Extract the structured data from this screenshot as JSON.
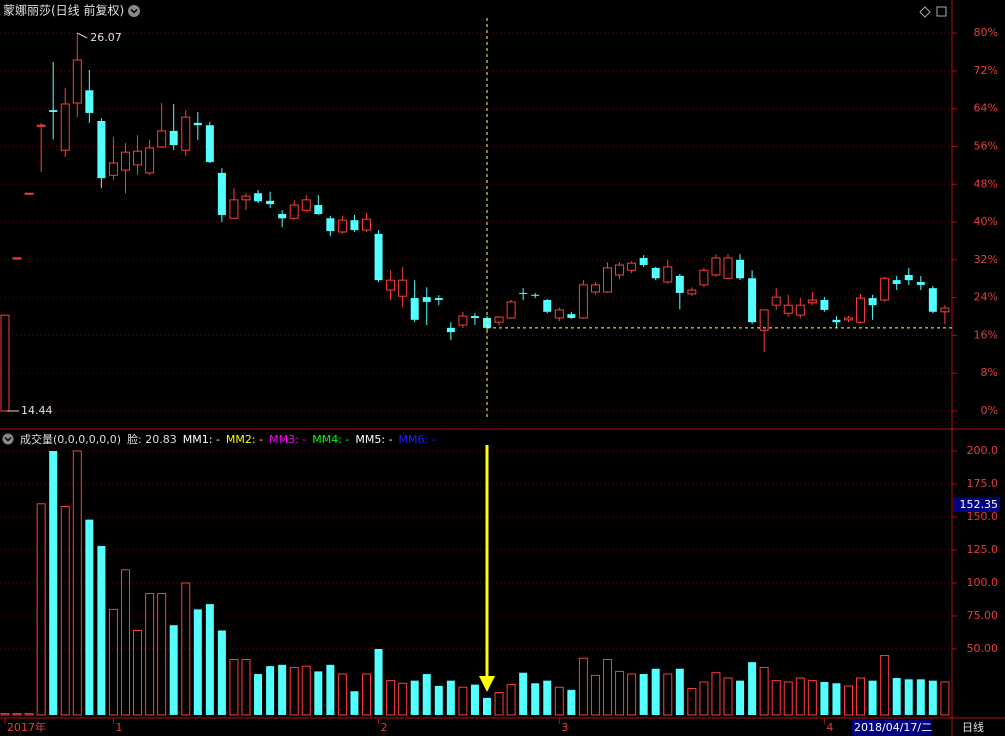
{
  "chart_data": [
    {
      "type": "candlestick",
      "title": "蒙娜丽莎(日线 前复权)",
      "categories": [
        "2017年",
        null,
        null,
        null,
        null,
        null,
        null,
        null,
        null,
        "1",
        null,
        null,
        null,
        null,
        null,
        null,
        null,
        null,
        null,
        null,
        null,
        null,
        null,
        null,
        null,
        null,
        null,
        null,
        null,
        null,
        null,
        "2",
        null,
        null,
        null,
        null,
        null,
        null,
        null,
        null,
        null,
        null,
        null,
        null,
        null,
        null,
        "3",
        null,
        null,
        null,
        null,
        null,
        null,
        null,
        null,
        null,
        null,
        null,
        null,
        null,
        null,
        null,
        null,
        null,
        null,
        null,
        null,
        null,
        "4",
        null,
        null,
        null,
        null,
        null,
        null,
        null,
        null,
        null,
        null
      ],
      "open": [
        0,
        32.4,
        46.1,
        60.3,
        63.7,
        55.2,
        65.2,
        67.9,
        61.4,
        49.9,
        51.0,
        52.1,
        50.4,
        55.9,
        59.3,
        55.2,
        61,
        60.5,
        50.4,
        40.8,
        44.7,
        46.1,
        44.5,
        41.7,
        40.8,
        42.5,
        43.6,
        40.8,
        37.9,
        40.4,
        38.3,
        37.5,
        25.6,
        24.3,
        23.9,
        24.1,
        23.9,
        17.6,
        18.2,
        20.1,
        19.7,
        18.8,
        19.7,
        25,
        24.6,
        23.5,
        19.7,
        20.5,
        19.7,
        25.2,
        25.2,
        28.8,
        29.8,
        32.4,
        30.3,
        27.3,
        28.6,
        24.8,
        26.7,
        28.8,
        28.1,
        32.0,
        28.1,
        17.1,
        22.4,
        20.7,
        20.3,
        22.9,
        23.5,
        19.3,
        19.3,
        18.8,
        23.9,
        23.5,
        27.7,
        28.8,
        27.3,
        26.0,
        21.0
      ],
      "high": [
        20.3,
        32.4,
        46.1,
        61,
        73.9,
        68.4,
        80.0,
        72.2,
        62.0,
        58.0,
        56.7,
        58.4,
        57.4,
        65.2,
        65.0,
        63.7,
        63.3,
        61.2,
        51.4,
        47.2,
        46.1,
        46.8,
        46.4,
        42.5,
        44.7,
        45.7,
        45.7,
        41.3,
        41.3,
        41.5,
        41.9,
        38.3,
        29.8,
        30.5,
        27.7,
        26.2,
        24.5,
        18.8,
        21.0,
        20.7,
        20.1,
        20.1,
        23.5,
        26.0,
        25.0,
        23.7,
        21.9,
        21.0,
        27.7,
        27.3,
        31.5,
        31.5,
        31.7,
        33.0,
        30.5,
        32,
        29,
        26.2,
        30.3,
        33.2,
        33.2,
        33.2,
        29.8,
        21.4,
        26,
        24.6,
        23.9,
        25.2,
        24.1,
        20.1,
        20.1,
        24.8,
        24.6,
        28.4,
        28.6,
        30.3,
        28.6,
        26.5,
        22.4
      ],
      "low": [
        0,
        32.4,
        46.1,
        50.6,
        57.5,
        53.8,
        62.2,
        61.0,
        47.2,
        48.9,
        46.1,
        50,
        50,
        55.7,
        55.2,
        54,
        57.4,
        52.5,
        40,
        40.6,
        42.5,
        44.0,
        43,
        38.9,
        40.4,
        42.1,
        41.5,
        37,
        37.5,
        37.9,
        37.9,
        27.3,
        23.5,
        22,
        18.8,
        18.2,
        22.4,
        15.0,
        17.6,
        18.2,
        17.1,
        18.2,
        19.5,
        23.5,
        23.9,
        20.7,
        19,
        19.5,
        19.5,
        24.6,
        25,
        27.9,
        29.2,
        30.5,
        27.7,
        27,
        21.5,
        24.4,
        26.2,
        28.4,
        27.9,
        27.7,
        18.4,
        12.5,
        21.4,
        20,
        19.7,
        22.4,
        21.0,
        17.6,
        18.8,
        18.6,
        19.3,
        23.1,
        25.6,
        26.7,
        25.6,
        20.7,
        18.4
      ],
      "close": [
        20.3,
        32.4,
        46.1,
        60.5,
        63.3,
        65.0,
        74.3,
        63.1,
        49.3,
        52.5,
        54.8,
        55.0,
        55.7,
        59.3,
        56.3,
        62.2,
        60.5,
        52.7,
        41.5,
        44.7,
        45.5,
        44.4,
        43.8,
        40.8,
        43.6,
        44.7,
        41.7,
        38.1,
        40.4,
        38.3,
        40.6,
        27.7,
        27.7,
        27.7,
        19.3,
        23.1,
        23.5,
        16.7,
        20.1,
        19.7,
        17.6,
        19.9,
        23.1,
        24.8,
        24.4,
        21.0,
        21.4,
        19.7,
        26.7,
        26.7,
        30.3,
        30.9,
        31.3,
        30.9,
        28.1,
        30.5,
        25.0,
        25.6,
        29.8,
        32.4,
        32.4,
        28.1,
        18.8,
        21.4,
        24.1,
        22.4,
        22.4,
        23.5,
        21.4,
        18.8,
        19.7,
        23.9,
        22.4,
        28.1,
        26.9,
        27.7,
        26.7,
        21.0,
        21.8
      ],
      "up_color": "#ff3c3c",
      "down_color": "#54ffff",
      "max_label": "26.07",
      "min_label": "14.44",
      "ylim": [
        -3.6,
        83.2
      ],
      "yticks": [
        {
          "value": 0,
          "label": "0%"
        },
        {
          "value": 8,
          "label": "8%"
        },
        {
          "value": 16,
          "label": "16%"
        },
        {
          "value": 24,
          "label": "24%"
        },
        {
          "value": 32,
          "label": "32%"
        },
        {
          "value": 40,
          "label": "40%"
        },
        {
          "value": 48,
          "label": "48%"
        },
        {
          "value": 56,
          "label": "56%"
        },
        {
          "value": 64,
          "label": "64%"
        },
        {
          "value": 72,
          "label": "72%"
        },
        {
          "value": 80,
          "label": "80%"
        }
      ],
      "grid": true,
      "cursor_date": "2018/04/17/二",
      "period": "日线"
    },
    {
      "type": "bar",
      "title": "成交量(0,0,0,0,0,0)",
      "value_text": "脸: 20.83",
      "indicators": [
        {
          "name": "MM1: -",
          "color": "#ffffff"
        },
        {
          "name": "MM2: -",
          "color": "#ffff00"
        },
        {
          "name": "MM3: -",
          "color": "#ff00ff"
        },
        {
          "name": "MM4: -",
          "color": "#00ff00"
        },
        {
          "name": "MM5: -",
          "color": "#ffffff"
        },
        {
          "name": "MM6: -",
          "color": "#2020ff"
        }
      ],
      "values": [
        1,
        1,
        1,
        160,
        200,
        158,
        200,
        148,
        128,
        80,
        110,
        64,
        92,
        92,
        68,
        100,
        80,
        84,
        64,
        42,
        42,
        31,
        37,
        38,
        36,
        37,
        33,
        38,
        31,
        18,
        31,
        50,
        26,
        24,
        26,
        31,
        22,
        26,
        21,
        23,
        13,
        17,
        23,
        32,
        24,
        26,
        21,
        19,
        43,
        30,
        42,
        33,
        31,
        31,
        35,
        31,
        35,
        20,
        25,
        32,
        28,
        26,
        40,
        36,
        26,
        25,
        28,
        26,
        25,
        24,
        22,
        28,
        26,
        45,
        28,
        27,
        27,
        26,
        25
      ],
      "ylim": [
        -2.3,
        210.6
      ],
      "yticks": [
        {
          "value": 50,
          "label": "50.00"
        },
        {
          "value": 75,
          "label": "75.00"
        },
        {
          "value": 100,
          "label": "100.0"
        },
        {
          "value": 125,
          "label": "125.0"
        },
        {
          "value": 150,
          "label": "150.0"
        },
        {
          "value": 175,
          "label": "175.0"
        },
        {
          "value": 200,
          "label": "200.0"
        }
      ],
      "grid": true,
      "cursor_value": "152.35"
    }
  ]
}
